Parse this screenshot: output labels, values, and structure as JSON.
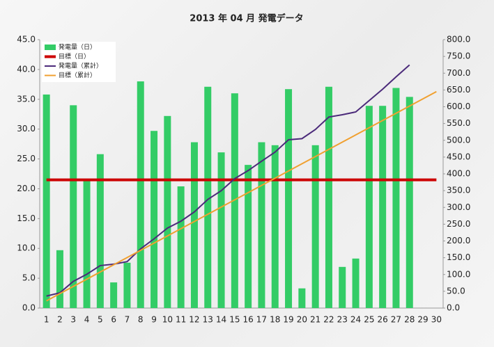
{
  "chart_data": {
    "type": "bar",
    "title": "2013 年 04 月 発電データ",
    "categories": [
      "1",
      "2",
      "3",
      "4",
      "5",
      "6",
      "7",
      "8",
      "9",
      "10",
      "11",
      "12",
      "13",
      "14",
      "15",
      "16",
      "17",
      "18",
      "19",
      "20",
      "21",
      "22",
      "23",
      "24",
      "25",
      "26",
      "27",
      "28",
      "29",
      "30"
    ],
    "series": [
      {
        "name": "発電量（日）",
        "type": "bar",
        "color": "#33cc66",
        "values": [
          35.8,
          9.7,
          34.0,
          21.3,
          25.8,
          4.3,
          7.6,
          38.0,
          29.7,
          32.2,
          20.4,
          27.8,
          37.1,
          26.1,
          36.0,
          24.0,
          27.8,
          27.3,
          36.7,
          3.3,
          27.3,
          37.1,
          6.9,
          8.3,
          33.9,
          33.9,
          36.9,
          35.4,
          null,
          null
        ]
      },
      {
        "name": "目標（日）",
        "type": "line",
        "color": "#cc0000",
        "width": 4,
        "values": [
          21.5,
          21.5,
          21.5,
          21.5,
          21.5,
          21.5,
          21.5,
          21.5,
          21.5,
          21.5,
          21.5,
          21.5,
          21.5,
          21.5,
          21.5,
          21.5,
          21.5,
          21.5,
          21.5,
          21.5,
          21.5,
          21.5,
          21.5,
          21.5,
          21.5,
          21.5,
          21.5,
          21.5,
          21.5,
          21.5
        ]
      },
      {
        "name": "発電量（累計）",
        "type": "line",
        "color": "#4b2a7a",
        "width": 2,
        "axis": "y2",
        "values": [
          35.8,
          45.5,
          79.5,
          100.8,
          126.6,
          130.9,
          138.5,
          176.5,
          206.2,
          238.4,
          258.8,
          286.6,
          323.7,
          349.8,
          385.8,
          409.8,
          437.6,
          464.9,
          501.6,
          504.9,
          532.2,
          569.3,
          576.2,
          584.5,
          618.4,
          652.3,
          689.2,
          724.6,
          null,
          null
        ]
      },
      {
        "name": "目標（累計）",
        "type": "line",
        "color": "#f0a030",
        "width": 2,
        "axis": "y2",
        "values": [
          21.5,
          43,
          64.5,
          86,
          107.5,
          129,
          150.5,
          172,
          193.5,
          215,
          236.5,
          258,
          279.5,
          301,
          322.5,
          344,
          365.5,
          387,
          408.5,
          430,
          451.5,
          473,
          494.5,
          516,
          537.5,
          559,
          580.5,
          602,
          623.5,
          645
        ]
      }
    ],
    "ylim": [
      0,
      45
    ],
    "yticks": [
      {
        "value": 0,
        "label": "0.0"
      },
      {
        "value": 5,
        "label": "5.0"
      },
      {
        "value": 10,
        "label": "10.0"
      },
      {
        "value": 15,
        "label": "15.0"
      },
      {
        "value": 20,
        "label": "20.0"
      },
      {
        "value": 25,
        "label": "25.0"
      },
      {
        "value": 30,
        "label": "30.0"
      },
      {
        "value": 35,
        "label": "35.0"
      },
      {
        "value": 40,
        "label": "40.0"
      },
      {
        "value": 45,
        "label": "45.0"
      }
    ],
    "y2lim": [
      0,
      800
    ],
    "y2ticks": [
      {
        "value": 0,
        "label": "0.0"
      },
      {
        "value": 50,
        "label": "50.0"
      },
      {
        "value": 100,
        "label": "100.0"
      },
      {
        "value": 150,
        "label": "150.0"
      },
      {
        "value": 200,
        "label": "200.0"
      },
      {
        "value": 250,
        "label": "250.0"
      },
      {
        "value": 300,
        "label": "300.0"
      },
      {
        "value": 350,
        "label": "350.0"
      },
      {
        "value": 400,
        "label": "400.0"
      },
      {
        "value": 450,
        "label": "450.0"
      },
      {
        "value": 500,
        "label": "500.0"
      },
      {
        "value": 550,
        "label": "550.0"
      },
      {
        "value": 600,
        "label": "600.0"
      },
      {
        "value": 650,
        "label": "650.0"
      },
      {
        "value": 700,
        "label": "700.0"
      },
      {
        "value": 750,
        "label": "750.0"
      },
      {
        "value": 800,
        "label": "800.0"
      }
    ],
    "legend": "top-left"
  }
}
